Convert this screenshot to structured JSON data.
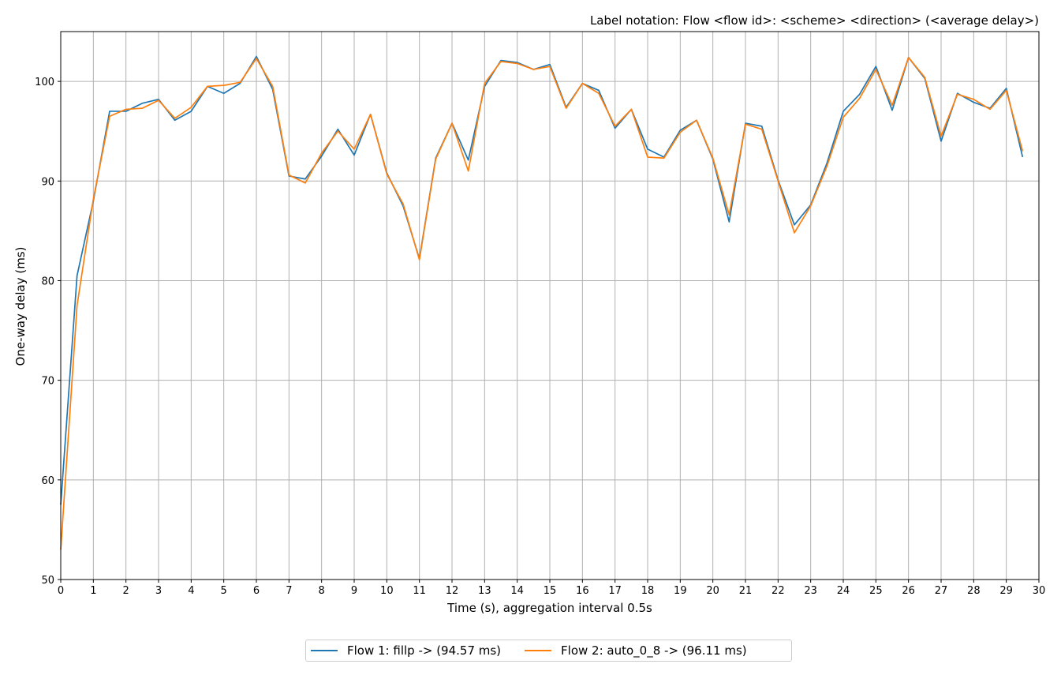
{
  "chart_data": {
    "type": "line",
    "title": "Label notation: Flow <flow id>: <scheme> <direction> (<average delay>)",
    "xlabel": "Time (s), aggregation interval 0.5s",
    "ylabel": "One-way delay (ms)",
    "xlim": [
      0,
      30
    ],
    "ylim": [
      50,
      105
    ],
    "xticks": [
      0,
      1,
      2,
      3,
      4,
      5,
      6,
      7,
      8,
      9,
      10,
      11,
      12,
      13,
      14,
      15,
      16,
      17,
      18,
      19,
      20,
      21,
      22,
      23,
      24,
      25,
      26,
      27,
      28,
      29,
      30
    ],
    "yticks": [
      50,
      60,
      70,
      80,
      90,
      100
    ],
    "grid": true,
    "legend_position": "bottom-center",
    "x": [
      0,
      0.5,
      1,
      1.5,
      2,
      2.5,
      3,
      3.5,
      4,
      4.5,
      5,
      5.5,
      6,
      6.5,
      7,
      7.5,
      8,
      8.5,
      9,
      9.5,
      10,
      10.5,
      11,
      11.5,
      12,
      12.5,
      13,
      13.5,
      14,
      14.5,
      15,
      15.5,
      16,
      16.5,
      17,
      17.5,
      18,
      18.5,
      19,
      19.5,
      20,
      20.5,
      21,
      21.5,
      22,
      22.5,
      23,
      23.5,
      24,
      24.5,
      25,
      25.5,
      26,
      26.5,
      27,
      27.5,
      28,
      28.5,
      29,
      29.5
    ],
    "series": [
      {
        "name": "Flow 1: fillp -> (94.57 ms)",
        "color": "#1f77b4",
        "values": [
          57.5,
          80.5,
          88.0,
          97.0,
          97.0,
          97.8,
          98.2,
          96.1,
          97.0,
          99.5,
          98.8,
          99.8,
          102.5,
          99.2,
          90.5,
          90.2,
          92.5,
          95.2,
          92.6,
          96.7,
          90.8,
          87.5,
          82.2,
          92.3,
          95.8,
          92.1,
          99.5,
          102.1,
          101.9,
          101.2,
          101.7,
          97.4,
          99.8,
          99.1,
          95.3,
          97.2,
          93.2,
          92.4,
          95.1,
          96.1,
          92.2,
          85.9,
          95.8,
          95.5,
          90.1,
          85.6,
          87.6,
          91.8,
          97.0,
          98.7,
          101.5,
          97.1,
          102.4,
          100.3,
          94.0,
          98.8,
          97.9,
          97.3,
          99.3,
          92.4
        ]
      },
      {
        "name": "Flow 2: auto_0_8 -> (96.11 ms)",
        "color": "#ff7f0e",
        "values": [
          53.0,
          77.5,
          88.2,
          96.5,
          97.2,
          97.3,
          98.1,
          96.3,
          97.4,
          99.5,
          99.6,
          99.9,
          102.3,
          99.5,
          90.6,
          89.8,
          92.8,
          95.0,
          93.2,
          96.7,
          90.7,
          87.7,
          82.1,
          92.2,
          95.8,
          91.0,
          99.8,
          102.0,
          101.8,
          101.2,
          101.5,
          97.3,
          99.8,
          98.8,
          95.5,
          97.2,
          92.4,
          92.3,
          94.9,
          96.1,
          92.3,
          86.6,
          95.7,
          95.2,
          90.0,
          84.8,
          87.5,
          91.5,
          96.4,
          98.3,
          101.2,
          97.6,
          102.4,
          100.4,
          94.5,
          98.7,
          98.2,
          97.2,
          99.1,
          93.0
        ]
      }
    ]
  }
}
